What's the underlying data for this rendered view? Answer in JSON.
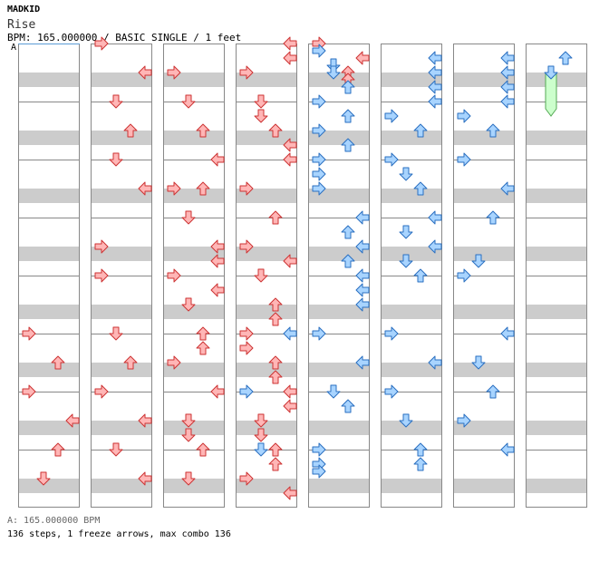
{
  "header": {
    "artist": "MADKID",
    "title": "Rise",
    "info": "BPM: 165.000000 / BASIC SINGLE / 1 feet",
    "marker": "A"
  },
  "footer": {
    "bpm_note": "A: 165.000000 BPM",
    "summary": "136 steps, 1 freeze arrows, max combo 136"
  },
  "colors": {
    "stripe": "#cccccc",
    "border": "#888888",
    "red_fill": "#ffb6b6",
    "red_stroke": "#cc3333",
    "blue_fill": "#a8d4ff",
    "blue_stroke": "#2a6fc0",
    "freeze_fill": "#ccffcc",
    "freeze_stroke": "#55aa55"
  },
  "chart_data": {
    "type": "step-chart",
    "columns": 8,
    "measures_per_column": 8,
    "lanes": [
      "left",
      "down",
      "up",
      "right"
    ],
    "freeze_count": 1,
    "notes": [
      [
        0,
        10,
        0,
        "r"
      ],
      [
        0,
        11,
        2,
        "r"
      ],
      [
        0,
        12,
        0,
        "r"
      ],
      [
        0,
        13,
        3,
        "r"
      ],
      [
        0,
        14,
        2,
        "r"
      ],
      [
        0,
        15,
        1,
        "r"
      ],
      [
        1,
        0,
        0,
        "r"
      ],
      [
        1,
        1,
        3,
        "r"
      ],
      [
        1,
        2,
        1,
        "r"
      ],
      [
        1,
        3,
        2,
        "r"
      ],
      [
        1,
        4,
        1,
        "r"
      ],
      [
        1,
        5,
        3,
        "r"
      ],
      [
        1,
        7,
        0,
        "r"
      ],
      [
        1,
        8,
        0,
        "r"
      ],
      [
        1,
        10,
        1,
        "r"
      ],
      [
        1,
        11,
        2,
        "r"
      ],
      [
        1,
        12,
        0,
        "r"
      ],
      [
        1,
        13,
        3,
        "r"
      ],
      [
        1,
        14,
        1,
        "r"
      ],
      [
        1,
        15,
        3,
        "r"
      ],
      [
        2,
        1,
        0,
        "r"
      ],
      [
        2,
        2,
        1,
        "r"
      ],
      [
        2,
        3,
        2,
        "r"
      ],
      [
        2,
        4,
        3,
        "r"
      ],
      [
        2,
        5,
        0,
        "r"
      ],
      [
        2,
        5,
        2,
        "r"
      ],
      [
        2,
        6,
        1,
        "r"
      ],
      [
        2,
        7,
        3,
        "r"
      ],
      [
        2,
        7.5,
        3,
        "r"
      ],
      [
        2,
        8,
        0,
        "r"
      ],
      [
        2,
        8.5,
        3,
        "r"
      ],
      [
        2,
        9,
        1,
        "r"
      ],
      [
        2,
        10,
        2,
        "r"
      ],
      [
        2,
        10.5,
        2,
        "r"
      ],
      [
        2,
        11,
        0,
        "r"
      ],
      [
        2,
        12,
        3,
        "r"
      ],
      [
        2,
        13,
        1,
        "r"
      ],
      [
        2,
        13.5,
        1,
        "r"
      ],
      [
        2,
        14,
        2,
        "r"
      ],
      [
        2,
        15,
        1,
        "r"
      ],
      [
        3,
        0,
        3,
        "r"
      ],
      [
        3,
        0.5,
        3,
        "r"
      ],
      [
        3,
        1,
        0,
        "r"
      ],
      [
        3,
        2,
        1,
        "r"
      ],
      [
        3,
        2.5,
        1,
        "r"
      ],
      [
        3,
        3,
        2,
        "r"
      ],
      [
        3,
        3.5,
        3,
        "r"
      ],
      [
        3,
        4,
        3,
        "r"
      ],
      [
        3,
        5,
        0,
        "r"
      ],
      [
        3,
        6,
        2,
        "r"
      ],
      [
        3,
        7,
        0,
        "r"
      ],
      [
        3,
        7.5,
        3,
        "r"
      ],
      [
        3,
        8,
        1,
        "r"
      ],
      [
        3,
        9,
        2,
        "r"
      ],
      [
        3,
        9.5,
        2,
        "r"
      ],
      [
        3,
        10,
        0,
        "r"
      ],
      [
        3,
        10.5,
        0,
        "r"
      ],
      [
        3,
        10,
        3,
        "b"
      ],
      [
        3,
        11,
        2,
        "r"
      ],
      [
        3,
        11.5,
        2,
        "r"
      ],
      [
        3,
        12,
        0,
        "b"
      ],
      [
        3,
        12,
        3,
        "r"
      ],
      [
        3,
        12.5,
        3,
        "r"
      ],
      [
        3,
        13,
        1,
        "r"
      ],
      [
        3,
        13.5,
        1,
        "r"
      ],
      [
        3,
        14,
        2,
        "r"
      ],
      [
        3,
        14,
        1,
        "b"
      ],
      [
        3,
        14.5,
        2,
        "r"
      ],
      [
        3,
        15,
        0,
        "r"
      ],
      [
        3,
        15.5,
        3,
        "r"
      ],
      [
        4,
        0,
        0,
        "r"
      ],
      [
        4,
        0.25,
        0,
        "b"
      ],
      [
        4,
        0.75,
        1,
        "b"
      ],
      [
        4,
        0.5,
        3,
        "r"
      ],
      [
        4,
        1,
        1,
        "b"
      ],
      [
        4,
        1,
        2,
        "r"
      ],
      [
        4,
        1.25,
        2,
        "r"
      ],
      [
        4,
        1.5,
        2,
        "b"
      ],
      [
        4,
        2,
        0,
        "b"
      ],
      [
        4,
        2.5,
        2,
        "b"
      ],
      [
        4,
        3,
        0,
        "b"
      ],
      [
        4,
        3.5,
        2,
        "b"
      ],
      [
        4,
        4,
        0,
        "b"
      ],
      [
        4,
        4.5,
        0,
        "b"
      ],
      [
        4,
        5,
        0,
        "b"
      ],
      [
        4,
        6,
        3,
        "b"
      ],
      [
        4,
        6.5,
        2,
        "b"
      ],
      [
        4,
        7,
        3,
        "b"
      ],
      [
        4,
        7.5,
        2,
        "b"
      ],
      [
        4,
        8,
        3,
        "b"
      ],
      [
        4,
        8.5,
        3,
        "b"
      ],
      [
        4,
        9,
        3,
        "b"
      ],
      [
        4,
        10,
        0,
        "b"
      ],
      [
        4,
        11,
        3,
        "b"
      ],
      [
        4,
        12,
        1,
        "b"
      ],
      [
        4,
        12.5,
        2,
        "b"
      ],
      [
        4,
        14,
        0,
        "b"
      ],
      [
        4,
        14.5,
        0,
        "b"
      ],
      [
        4,
        14.75,
        0,
        "b"
      ],
      [
        5,
        0.5,
        3,
        "b"
      ],
      [
        5,
        1,
        3,
        "b"
      ],
      [
        5,
        1.5,
        3,
        "b"
      ],
      [
        5,
        2,
        3,
        "b"
      ],
      [
        5,
        2.5,
        0,
        "b"
      ],
      [
        5,
        3,
        2,
        "b"
      ],
      [
        5,
        4,
        0,
        "b"
      ],
      [
        5,
        4.5,
        1,
        "b"
      ],
      [
        5,
        5,
        2,
        "b"
      ],
      [
        5,
        6,
        3,
        "b"
      ],
      [
        5,
        6.5,
        1,
        "b"
      ],
      [
        5,
        7,
        3,
        "b"
      ],
      [
        5,
        7.5,
        1,
        "b"
      ],
      [
        5,
        8,
        2,
        "b"
      ],
      [
        5,
        10,
        0,
        "b"
      ],
      [
        5,
        11,
        3,
        "b"
      ],
      [
        5,
        12,
        0,
        "b"
      ],
      [
        5,
        13,
        1,
        "b"
      ],
      [
        5,
        14,
        2,
        "b"
      ],
      [
        5,
        14.5,
        2,
        "b"
      ],
      [
        6,
        0.5,
        3,
        "b"
      ],
      [
        6,
        1,
        3,
        "b"
      ],
      [
        6,
        1.5,
        3,
        "b"
      ],
      [
        6,
        2,
        3,
        "b"
      ],
      [
        6,
        2.5,
        0,
        "b"
      ],
      [
        6,
        3,
        2,
        "b"
      ],
      [
        6,
        4,
        0,
        "b"
      ],
      [
        6,
        5,
        3,
        "b"
      ],
      [
        6,
        6,
        2,
        "b"
      ],
      [
        6,
        7.5,
        1,
        "b"
      ],
      [
        6,
        8,
        0,
        "b"
      ],
      [
        6,
        10,
        3,
        "b"
      ],
      [
        6,
        11,
        1,
        "b"
      ],
      [
        6,
        12,
        2,
        "b"
      ],
      [
        6,
        13,
        0,
        "b"
      ],
      [
        6,
        14,
        3,
        "b"
      ],
      [
        7,
        0.5,
        2,
        "b"
      ],
      [
        7,
        1,
        1,
        "b"
      ]
    ],
    "freezes": [
      [
        7,
        1,
        2.25,
        1
      ]
    ]
  }
}
